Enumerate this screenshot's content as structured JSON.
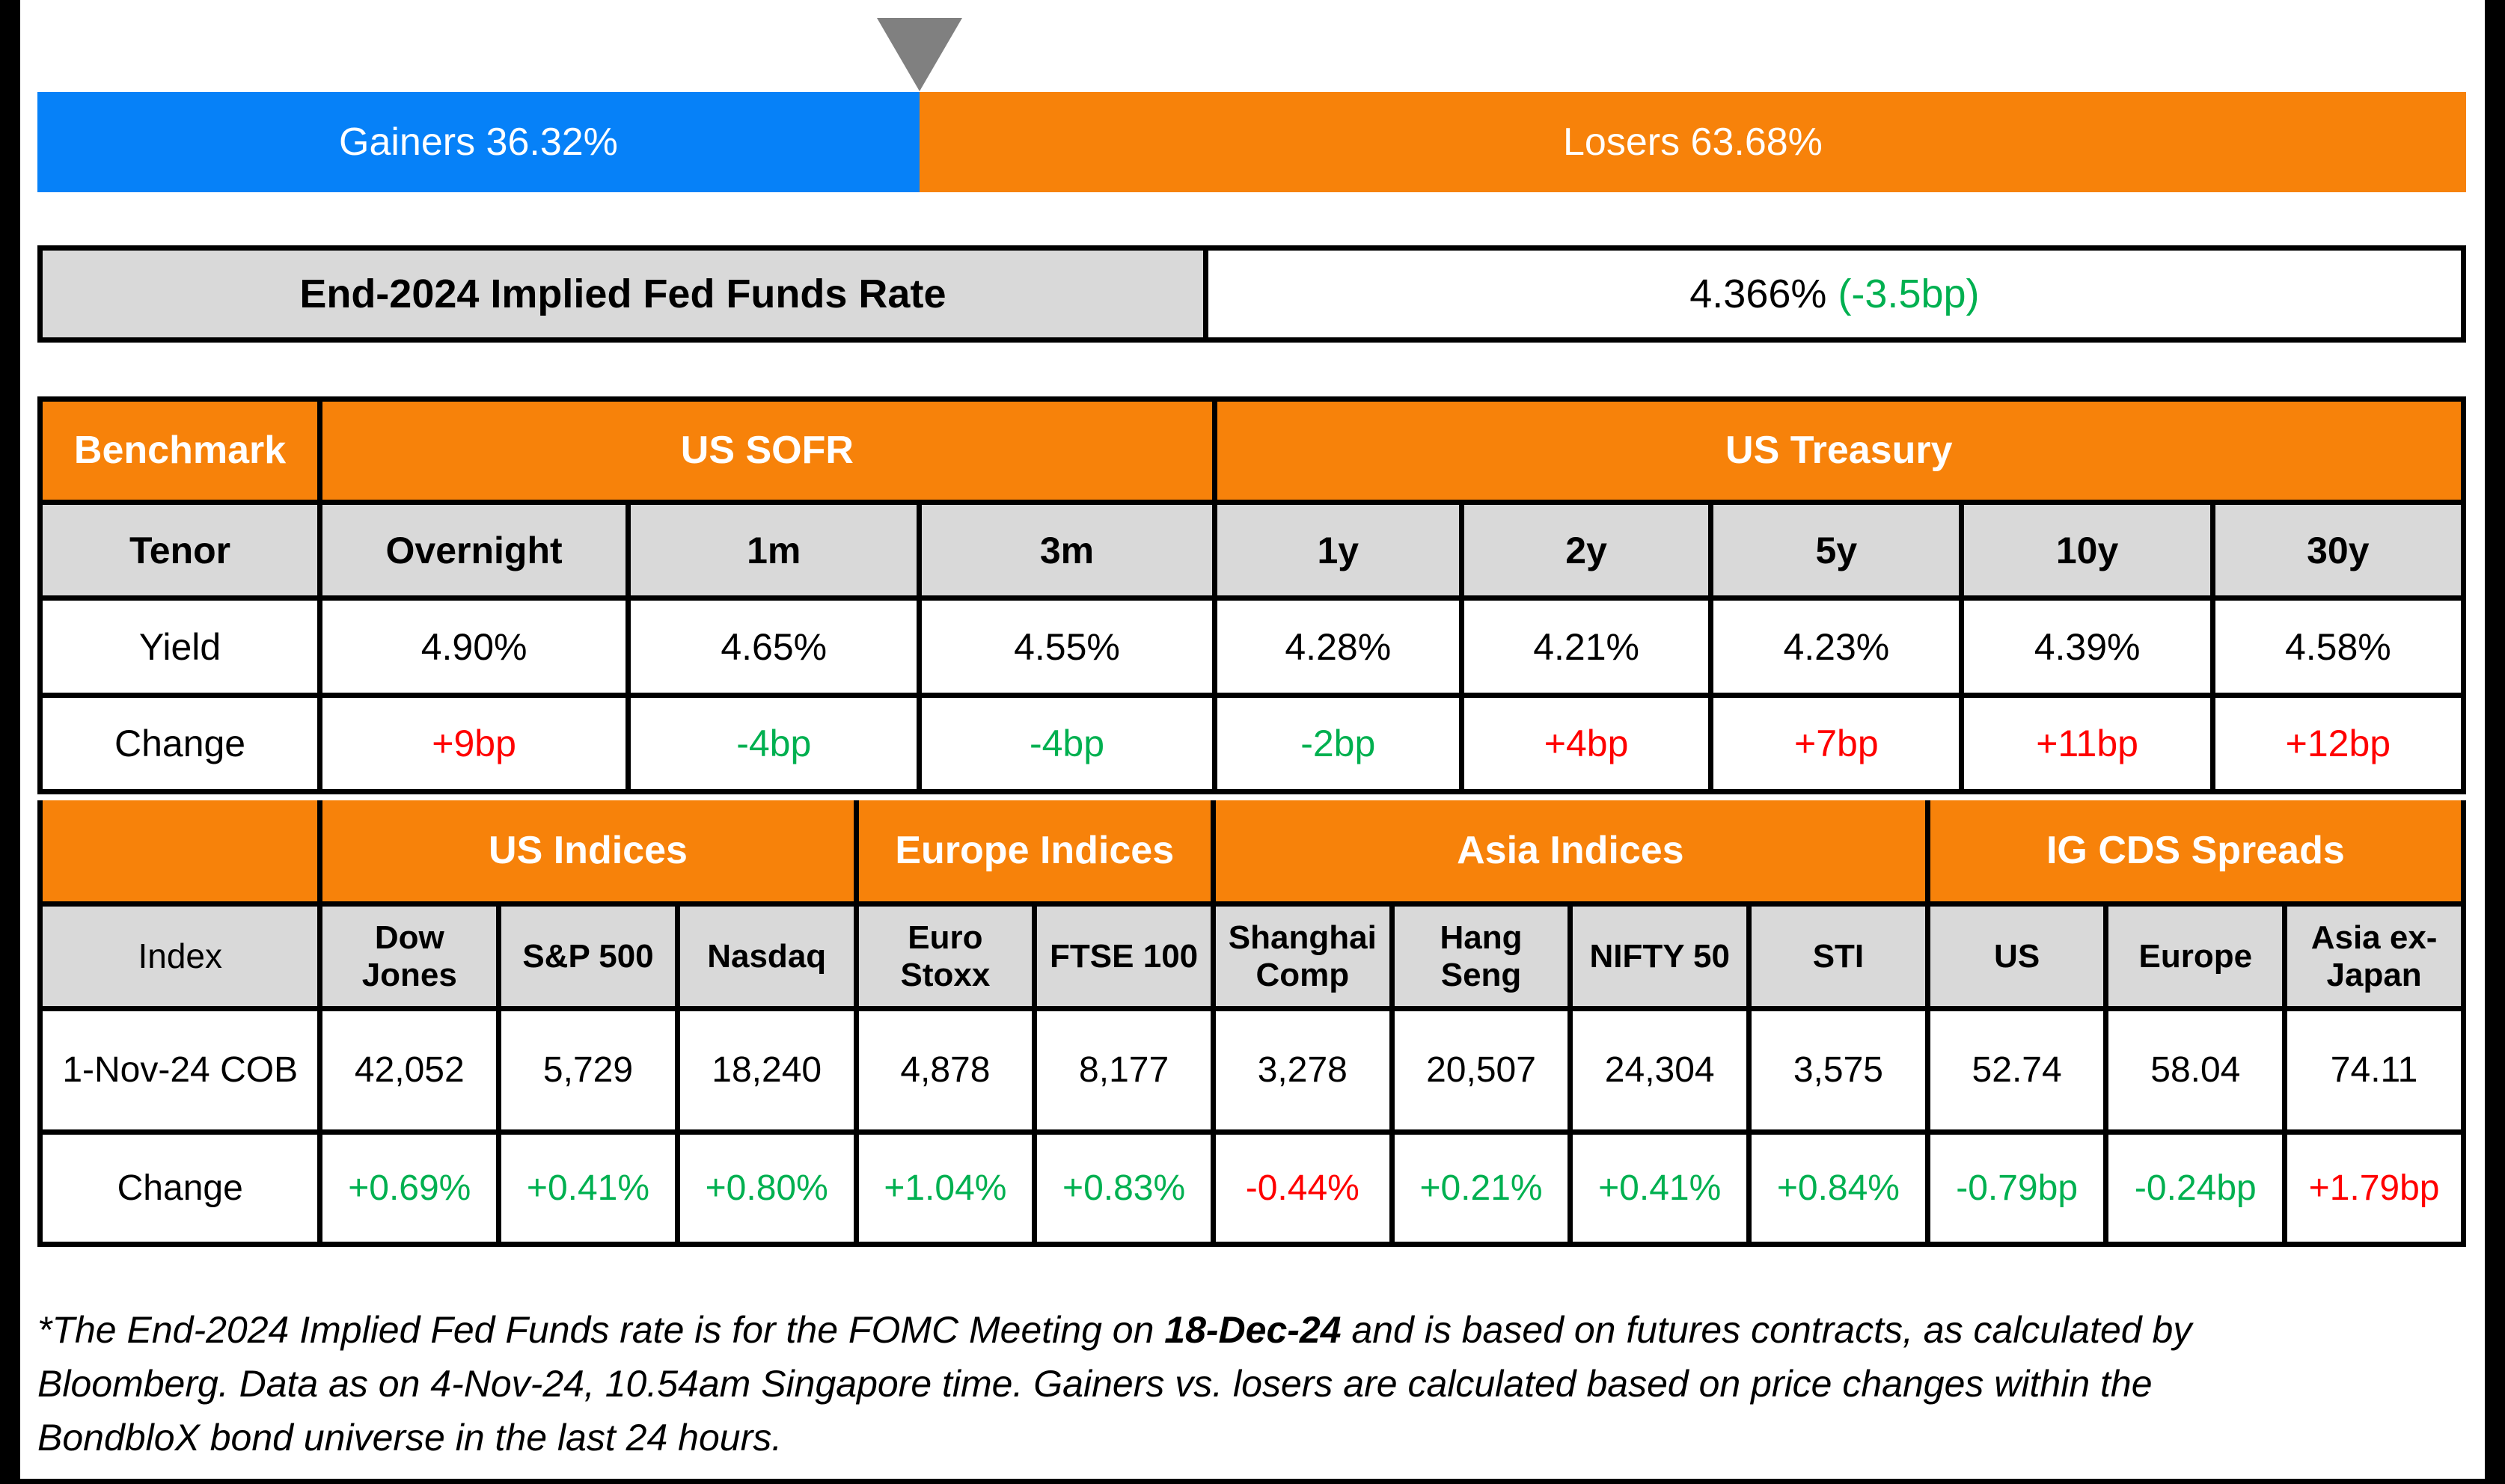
{
  "colors": {
    "gainers_blue": "#0681F8",
    "losers_orange": "#F7820A",
    "header_orange": "#F7820A",
    "gray_cell": "#D9D9D9",
    "positive_green": "#00B050",
    "negative_red": "#FF0000",
    "triangle_gray": "#808080",
    "border_black": "#000000"
  },
  "gainers_losers": {
    "gainers_label": "Gainers 36.32%",
    "gainers_pct": 36.32,
    "losers_label": "Losers 63.68%",
    "losers_pct": 63.68
  },
  "fed_funds": {
    "label": "End-2024 Implied Fed Funds Rate",
    "value": "4.366%",
    "change": "(-3.5bp)",
    "change_color": "green"
  },
  "benchmark": {
    "corner_label": "Benchmark",
    "group_headers": [
      {
        "label": "US SOFR",
        "span": 3
      },
      {
        "label": "US Treasury",
        "span": 5
      }
    ],
    "tenor_label": "Tenor",
    "yield_label": "Yield",
    "change_label": "Change",
    "tenors": [
      {
        "tenor": "Overnight",
        "yield": "4.90%",
        "change": "+9bp",
        "change_color": "red"
      },
      {
        "tenor": "1m",
        "yield": "4.65%",
        "change": "-4bp",
        "change_color": "green"
      },
      {
        "tenor": "3m",
        "yield": "4.55%",
        "change": "-4bp",
        "change_color": "green"
      },
      {
        "tenor": "1y",
        "yield": "4.28%",
        "change": "-2bp",
        "change_color": "green"
      },
      {
        "tenor": "2y",
        "yield": "4.21%",
        "change": "+4bp",
        "change_color": "red"
      },
      {
        "tenor": "5y",
        "yield": "4.23%",
        "change": "+7bp",
        "change_color": "red"
      },
      {
        "tenor": "10y",
        "yield": "4.39%",
        "change": "+11bp",
        "change_color": "red"
      },
      {
        "tenor": "30y",
        "yield": "4.58%",
        "change": "+12bp",
        "change_color": "red"
      }
    ]
  },
  "indices": {
    "corner_label": "Index",
    "group_headers": [
      {
        "label": "US Indices",
        "span": 3
      },
      {
        "label": "Europe Indices",
        "span": 2
      },
      {
        "label": "Asia Indices",
        "span": 4
      },
      {
        "label": "IG CDS Spreads",
        "span": 3
      }
    ],
    "date_label": "1-Nov-24 COB",
    "change_label": "Change",
    "columns": [
      {
        "name": "Dow Jones",
        "value": "42,052",
        "change": "+0.69%",
        "change_color": "green"
      },
      {
        "name": "S&P 500",
        "value": "5,729",
        "change": "+0.41%",
        "change_color": "green"
      },
      {
        "name": "Nasdaq",
        "value": "18,240",
        "change": "+0.80%",
        "change_color": "green"
      },
      {
        "name": "Euro Stoxx",
        "value": "4,878",
        "change": "+1.04%",
        "change_color": "green"
      },
      {
        "name": "FTSE 100",
        "value": "8,177",
        "change": "+0.83%",
        "change_color": "green"
      },
      {
        "name": "Shanghai Comp",
        "value": "3,278",
        "change": "-0.44%",
        "change_color": "red"
      },
      {
        "name": "Hang Seng",
        "value": "20,507",
        "change": "+0.21%",
        "change_color": "green"
      },
      {
        "name": "NIFTY 50",
        "value": "24,304",
        "change": "+0.41%",
        "change_color": "green"
      },
      {
        "name": "STI",
        "value": "3,575",
        "change": "+0.84%",
        "change_color": "green"
      },
      {
        "name": "US",
        "value": "52.74",
        "change": "-0.79bp",
        "change_color": "green"
      },
      {
        "name": "Europe",
        "value": "58.04",
        "change": "-0.24bp",
        "change_color": "green"
      },
      {
        "name": "Asia ex-Japan",
        "value": "74.11",
        "change": "+1.79bp",
        "change_color": "red"
      }
    ]
  },
  "footnote": {
    "line1_pre": "*The End-2024 Implied Fed Funds rate is for the FOMC Meeting on ",
    "line1_bold": "18-Dec-24",
    "line1_post": " and is based on futures contracts, as calculated by",
    "line2": "Bloomberg. Data as on 4-Nov-24, 10.54am Singapore time. Gainers vs. losers are calculated based on price changes within the",
    "line3": "BondbloX bond universe in the last 24 hours."
  }
}
